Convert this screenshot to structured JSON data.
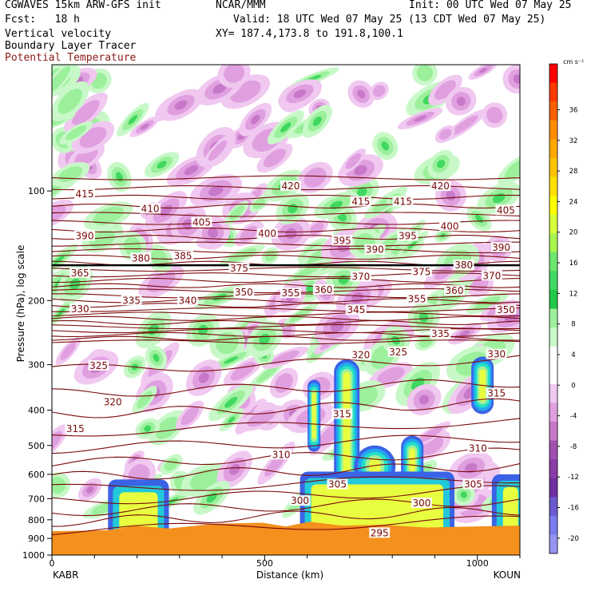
{
  "header": {
    "title_left": "CGWAVES 15km ARW-GFS init",
    "fcst": "Fcst:   18 h",
    "field1": "Vertical velocity",
    "field2": "Boundary Layer Tracer",
    "field3": "Potential Temperature",
    "center_org": "NCAR/MMM",
    "init": "Init: 00 UTC Wed 07 May 25",
    "valid": "Valid: 18 UTC Wed 07 May 25 (13 CDT Wed 07 May 25)",
    "xy": "XY= 187.4,173.8 to 191.8,100.1"
  },
  "colors": {
    "theta": "#7a0a0a",
    "field3_text": "#8b1a1a",
    "tracer": "#f4901e",
    "tropopause": "#000000"
  },
  "chart_data": {
    "type": "heatmap",
    "ylabel": "Pressure (hPa), log scale",
    "xlabel": "Distance (km)",
    "x_ticks": [
      0,
      500,
      1000
    ],
    "x_tick_labels": [
      "0",
      "500",
      "1000"
    ],
    "x_range": [
      0,
      1100
    ],
    "y_scale": "log",
    "y_range": [
      1000,
      45
    ],
    "y_ticks": [
      100,
      200,
      300,
      400,
      500,
      600,
      700,
      800,
      900,
      1000
    ],
    "endpoints": {
      "left": "KABR",
      "right": "KOUN"
    },
    "colorbar": {
      "unit": "cm s⁻¹",
      "range": [
        -22,
        42
      ],
      "tick_values": [
        36,
        32,
        28,
        24,
        20,
        16,
        12,
        8,
        4,
        0,
        -4,
        -8,
        -12,
        -16,
        -20
      ],
      "tick_labels": [
        "36",
        "32",
        "28",
        "24",
        "20",
        "16",
        "12",
        "8",
        "4",
        "0",
        "-4",
        "-8",
        "-12",
        "-16",
        "-20"
      ],
      "colors": [
        "#ff0000",
        "#ff3a00",
        "#ff6000",
        "#ff8c00",
        "#ffa800",
        "#ffc400",
        "#ffe000",
        "#ffff00",
        "#d6ff3a",
        "#a8f550",
        "#6ee66e",
        "#40d860",
        "#22c94a",
        "#9cf09c",
        "#c8f8c8",
        "#ffffff",
        "#ffffff",
        "#f0c8f0",
        "#e0a0e0",
        "#c878c8",
        "#a050b0",
        "#8a3ca8",
        "#7030a0",
        "#6a5acd",
        "#7b7bef",
        "#9494f2"
      ]
    },
    "theta_labels": [
      {
        "x": 0.07,
        "p": 102,
        "v": "415"
      },
      {
        "x": 0.21,
        "p": 112,
        "v": "410"
      },
      {
        "x": 0.51,
        "p": 97,
        "v": "420"
      },
      {
        "x": 0.32,
        "p": 122,
        "v": "405"
      },
      {
        "x": 0.07,
        "p": 133,
        "v": "390"
      },
      {
        "x": 0.46,
        "p": 131,
        "v": "400"
      },
      {
        "x": 0.62,
        "p": 137,
        "v": "395"
      },
      {
        "x": 0.66,
        "p": 107,
        "v": "415"
      },
      {
        "x": 0.75,
        "p": 107,
        "v": "415"
      },
      {
        "x": 0.83,
        "p": 97,
        "v": "420"
      },
      {
        "x": 0.85,
        "p": 125,
        "v": "400"
      },
      {
        "x": 0.97,
        "p": 113,
        "v": "405"
      },
      {
        "x": 0.76,
        "p": 133,
        "v": "395"
      },
      {
        "x": 0.69,
        "p": 145,
        "v": "390"
      },
      {
        "x": 0.96,
        "p": 143,
        "v": "390"
      },
      {
        "x": 0.19,
        "p": 153,
        "v": "380"
      },
      {
        "x": 0.28,
        "p": 151,
        "v": "385"
      },
      {
        "x": 0.4,
        "p": 163,
        "v": "375"
      },
      {
        "x": 0.06,
        "p": 168,
        "v": "365"
      },
      {
        "x": 0.79,
        "p": 167,
        "v": "375"
      },
      {
        "x": 0.88,
        "p": 160,
        "v": "380"
      },
      {
        "x": 0.94,
        "p": 171,
        "v": "370"
      },
      {
        "x": 0.66,
        "p": 172,
        "v": "370"
      },
      {
        "x": 0.58,
        "p": 187,
        "v": "360"
      },
      {
        "x": 0.51,
        "p": 191,
        "v": "355"
      },
      {
        "x": 0.41,
        "p": 190,
        "v": "350"
      },
      {
        "x": 0.29,
        "p": 200,
        "v": "340"
      },
      {
        "x": 0.17,
        "p": 200,
        "v": "335"
      },
      {
        "x": 0.06,
        "p": 211,
        "v": "330"
      },
      {
        "x": 0.65,
        "p": 212,
        "v": "345"
      },
      {
        "x": 0.78,
        "p": 198,
        "v": "355"
      },
      {
        "x": 0.86,
        "p": 188,
        "v": "360"
      },
      {
        "x": 0.83,
        "p": 247,
        "v": "335"
      },
      {
        "x": 0.74,
        "p": 277,
        "v": "325"
      },
      {
        "x": 0.66,
        "p": 282,
        "v": "320"
      },
      {
        "x": 0.97,
        "p": 212,
        "v": "350"
      },
      {
        "x": 0.95,
        "p": 281,
        "v": "330"
      },
      {
        "x": 0.1,
        "p": 302,
        "v": "325"
      },
      {
        "x": 0.13,
        "p": 380,
        "v": "320"
      },
      {
        "x": 0.05,
        "p": 450,
        "v": "315"
      },
      {
        "x": 0.62,
        "p": 410,
        "v": "315"
      },
      {
        "x": 0.95,
        "p": 360,
        "v": "315"
      },
      {
        "x": 0.49,
        "p": 530,
        "v": "310"
      },
      {
        "x": 0.91,
        "p": 510,
        "v": "310"
      },
      {
        "x": 0.61,
        "p": 640,
        "v": "305"
      },
      {
        "x": 0.9,
        "p": 640,
        "v": "305"
      },
      {
        "x": 0.53,
        "p": 710,
        "v": "300"
      },
      {
        "x": 0.79,
        "p": 720,
        "v": "300"
      },
      {
        "x": 0.7,
        "p": 870,
        "v": "295"
      }
    ]
  }
}
